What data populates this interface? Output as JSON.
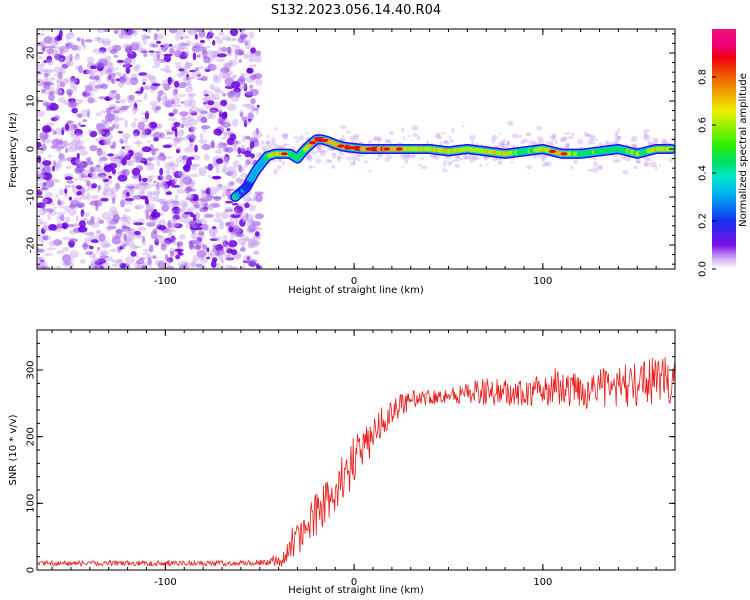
{
  "title": "S132.2023.056.14.40.R04",
  "colors": {
    "trace": "#e8201e",
    "frame": "#000000",
    "noise_dark": "#6a00e0",
    "noise_light": "#c8a0f0"
  },
  "chart_data": [
    {
      "type": "heatmap",
      "xlabel": "Height of straight line (km)",
      "ylabel": "Frequency (Hz)",
      "xlim": [
        -168,
        170
      ],
      "ylim": [
        -25,
        25
      ],
      "x_ticks": [
        -100,
        0,
        100
      ],
      "y_ticks": [
        -20,
        -10,
        0,
        10,
        20
      ],
      "colorbar": {
        "label": "Normalized spectral amplitude",
        "range": [
          0.0,
          1.0
        ],
        "ticks": [
          0.0,
          0.2,
          0.4,
          0.6,
          0.8
        ],
        "tick_labels": [
          "0.0",
          "0.2",
          "0.4",
          "0.6",
          "0.8"
        ],
        "colormap": "gist_ncar"
      },
      "noise_region_x": [
        -168,
        -50
      ],
      "ridge": {
        "x": [
          -63,
          -60,
          -57,
          -55,
          -52,
          -49,
          -46,
          -42,
          -38,
          -34,
          -30,
          -27,
          -23,
          -20,
          -17,
          -13,
          -10,
          -6,
          0,
          5,
          10,
          20,
          30,
          40,
          50,
          60,
          70,
          80,
          90,
          100,
          110,
          120,
          130,
          140,
          150,
          160,
          168
        ],
        "y": [
          -10,
          -9,
          -8,
          -6.5,
          -4.5,
          -3,
          -1.5,
          -1,
          -1,
          -1,
          -2,
          -0.5,
          1,
          2,
          2,
          1.5,
          1,
          0.5,
          0.2,
          0,
          0,
          0,
          0,
          0,
          -0.5,
          0,
          -0.5,
          -1,
          -0.5,
          0,
          -1,
          -1,
          -0.5,
          0,
          -1,
          0,
          0
        ],
        "amp": [
          0.45,
          0.3,
          0.25,
          0.4,
          0.45,
          0.4,
          0.55,
          0.7,
          0.75,
          0.6,
          0.55,
          0.6,
          0.75,
          0.9,
          0.9,
          0.8,
          0.75,
          0.85,
          0.9,
          0.85,
          0.9,
          0.85,
          0.65,
          0.7,
          0.7,
          0.65,
          0.7,
          0.7,
          0.5,
          0.7,
          0.75,
          0.55,
          0.55,
          0.5,
          0.6,
          0.7,
          0.7
        ]
      },
      "grid": false
    },
    {
      "type": "line",
      "xlabel": "Height of straight line (km)",
      "ylabel": "SNR (10 * v/v)",
      "xlim": [
        -168,
        170
      ],
      "ylim": [
        0,
        360
      ],
      "x_ticks": [
        -100,
        0,
        100
      ],
      "y_ticks": [
        0,
        100,
        200,
        300
      ],
      "series": [
        {
          "color": "#e8201e",
          "x": [
            -168,
            -150,
            -120,
            -90,
            -60,
            -45,
            -38,
            -30,
            -20,
            -10,
            0,
            10,
            20,
            30,
            40,
            50,
            60,
            70,
            80,
            90,
            100,
            110,
            120,
            130,
            140,
            150,
            160,
            170
          ],
          "y": [
            10,
            10,
            10,
            10,
            10,
            12,
            15,
            45,
            85,
            120,
            165,
            205,
            240,
            255,
            260,
            262,
            265,
            268,
            265,
            265,
            270,
            268,
            270,
            272,
            275,
            280,
            285,
            285
          ],
          "spread": [
            4,
            4,
            4,
            4,
            4,
            5,
            10,
            25,
            35,
            35,
            35,
            30,
            20,
            14,
            12,
            12,
            18,
            20,
            20,
            22,
            24,
            26,
            28,
            30,
            32,
            34,
            36,
            36
          ]
        }
      ],
      "grid": false
    }
  ]
}
